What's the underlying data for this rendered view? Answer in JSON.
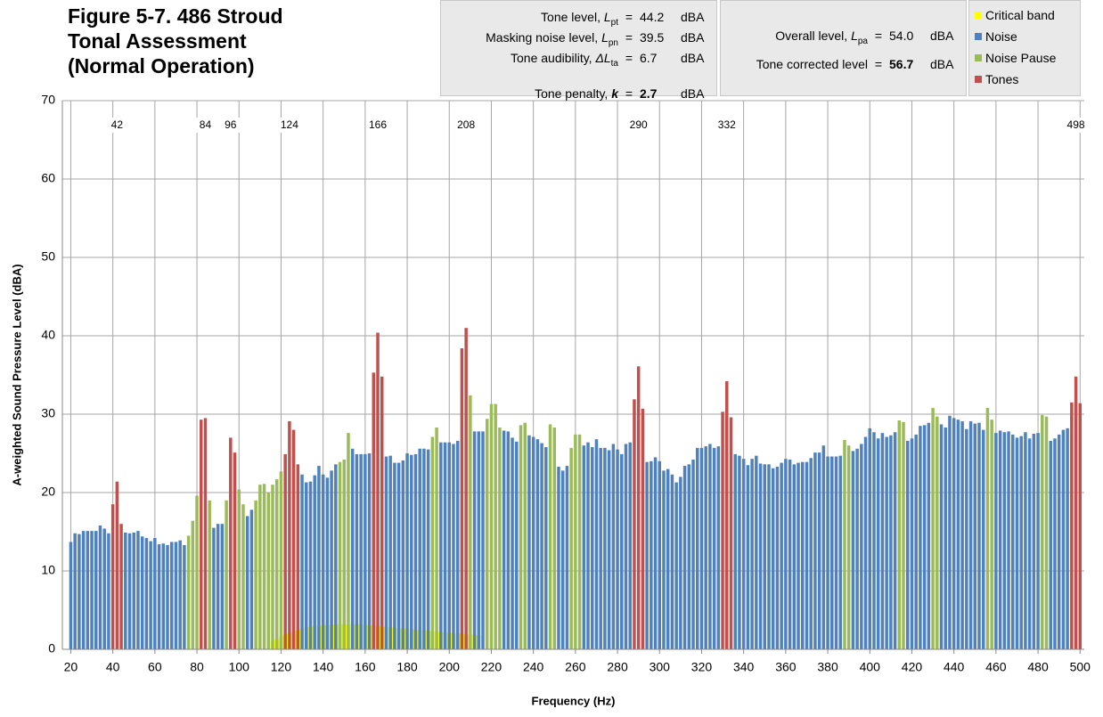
{
  "chart_data": {
    "type": "bar",
    "title": [
      "Figure 5-7.  486 Stroud",
      "Tonal Assessment",
      "(Normal Operation)"
    ],
    "x_label": "Frequency (Hz)",
    "y_label": "A-weighted Sound Pressure Level (dBA)",
    "xlim": [
      16,
      502
    ],
    "xticks": [
      20,
      40,
      60,
      80,
      100,
      120,
      140,
      160,
      180,
      200,
      220,
      240,
      260,
      280,
      300,
      320,
      340,
      360,
      380,
      400,
      420,
      440,
      460,
      480,
      500
    ],
    "ylim": [
      0,
      70
    ],
    "yticks": [
      0,
      10,
      20,
      30,
      40,
      50,
      60,
      70
    ],
    "grid": true,
    "tone_labels": [
      42,
      84,
      96,
      124,
      166,
      208,
      290,
      332,
      498
    ],
    "series": [
      {
        "name": "Critical band",
        "color": "#ffff00",
        "x": [
          116,
          118,
          120,
          122,
          124,
          126,
          128,
          130,
          132,
          134,
          136,
          138,
          140,
          142,
          144,
          146,
          148,
          150,
          152,
          154,
          156,
          158,
          160,
          162,
          164,
          166,
          168,
          170,
          172,
          174,
          176,
          178,
          180,
          182,
          184,
          186,
          188,
          190,
          192,
          194,
          196,
          198,
          200,
          202,
          204,
          206,
          208,
          210,
          212,
          214
        ],
        "values": [
          1.0,
          1.3,
          1.6,
          1.9,
          2.1,
          2.3,
          2.5,
          2.6,
          2.8,
          2.9,
          3.0,
          3.0,
          3.1,
          3.1,
          3.1,
          3.2,
          3.2,
          3.2,
          3.2,
          3.2,
          3.2,
          3.2,
          3.1,
          3.1,
          3.0,
          3.0,
          2.9,
          2.9,
          2.8,
          2.8,
          2.7,
          2.7,
          2.6,
          2.6,
          2.5,
          2.5,
          2.4,
          2.4,
          2.3,
          2.3,
          2.2,
          2.2,
          2.1,
          2.1,
          2.0,
          2.0,
          1.9,
          1.9,
          1.8,
          1.8
        ]
      },
      {
        "name": "Noise",
        "color": "#4f81bd",
        "x": [
          20,
          22,
          24,
          26,
          28,
          30,
          32,
          34,
          36,
          38,
          46,
          48,
          50,
          52,
          54,
          56,
          58,
          60,
          62,
          64,
          66,
          68,
          70,
          72,
          74,
          88,
          90,
          92,
          104,
          106,
          130,
          132,
          134,
          136,
          138,
          140,
          142,
          144,
          146,
          154,
          156,
          158,
          160,
          162,
          170,
          172,
          174,
          176,
          178,
          180,
          182,
          184,
          186,
          188,
          190,
          196,
          198,
          200,
          202,
          204,
          212,
          214,
          216,
          226,
          228,
          230,
          232,
          238,
          240,
          242,
          244,
          246,
          252,
          254,
          256,
          264,
          266,
          268,
          270,
          272,
          274,
          276,
          278,
          280,
          282,
          284,
          286,
          294,
          296,
          298,
          300,
          302,
          304,
          306,
          308,
          310,
          312,
          314,
          316,
          318,
          320,
          322,
          324,
          326,
          328,
          336,
          338,
          340,
          342,
          344,
          346,
          348,
          350,
          352,
          354,
          356,
          358,
          360,
          362,
          364,
          366,
          368,
          370,
          372,
          374,
          376,
          378,
          380,
          382,
          384,
          386,
          392,
          394,
          396,
          398,
          400,
          402,
          404,
          406,
          408,
          410,
          412,
          418,
          420,
          422,
          424,
          426,
          428,
          434,
          436,
          438,
          440,
          442,
          444,
          446,
          448,
          450,
          452,
          454,
          460,
          462,
          464,
          466,
          468,
          470,
          472,
          474,
          476,
          478,
          480,
          486,
          488,
          490,
          492,
          494
        ],
        "values": [
          13.7,
          14.8,
          14.7,
          15.1,
          15.1,
          15.1,
          15.1,
          15.8,
          15.4,
          14.8,
          14.9,
          14.8,
          14.9,
          15.1,
          14.4,
          14.2,
          13.8,
          14.2,
          13.4,
          13.5,
          13.3,
          13.7,
          13.7,
          13.9,
          13.3,
          15.5,
          16.0,
          16.0,
          17.0,
          17.8,
          22.3,
          21.3,
          21.4,
          22.2,
          23.4,
          22.3,
          21.9,
          22.8,
          23.6,
          25.6,
          24.9,
          24.9,
          24.9,
          25.0,
          24.6,
          24.7,
          23.8,
          23.8,
          24.1,
          25.0,
          24.8,
          24.9,
          25.6,
          25.6,
          25.5,
          26.4,
          26.4,
          26.4,
          26.2,
          26.6,
          27.8,
          27.8,
          27.8,
          27.9,
          27.8,
          27.0,
          26.5,
          27.3,
          27.1,
          26.8,
          26.3,
          25.8,
          23.3,
          22.8,
          23.4,
          26.0,
          26.4,
          25.8,
          26.8,
          25.7,
          25.7,
          25.4,
          26.2,
          25.5,
          24.9,
          26.2,
          26.4,
          23.9,
          24.0,
          24.5,
          24.0,
          22.8,
          23.0,
          22.3,
          21.3,
          22.0,
          23.4,
          23.6,
          24.2,
          25.7,
          25.7,
          25.9,
          26.2,
          25.7,
          25.9,
          24.9,
          24.7,
          24.3,
          23.5,
          24.3,
          24.7,
          23.7,
          23.6,
          23.6,
          23.1,
          23.3,
          23.8,
          24.3,
          24.2,
          23.6,
          23.8,
          23.9,
          23.9,
          24.4,
          25.1,
          25.1,
          26.0,
          24.6,
          24.6,
          24.6,
          24.7,
          25.3,
          25.6,
          26.2,
          27.1,
          28.2,
          27.7,
          26.9,
          27.6,
          27.1,
          27.3,
          27.7,
          26.6,
          26.9,
          27.4,
          28.5,
          28.6,
          28.9,
          28.7,
          28.3,
          29.8,
          29.5,
          29.3,
          29.1,
          28.1,
          29.1,
          28.8,
          28.9,
          28.0,
          27.6,
          27.9,
          27.7,
          27.8,
          27.4,
          27.0,
          27.2,
          27.7,
          26.9,
          27.5,
          27.6,
          26.6,
          26.9,
          27.4,
          28.0,
          28.2
        ]
      },
      {
        "name": "Noise Pause",
        "color": "#9bbb59",
        "x": [
          76,
          78,
          80,
          86,
          94,
          100,
          102,
          108,
          110,
          112,
          114,
          116,
          118,
          120,
          148,
          150,
          152,
          192,
          194,
          210,
          218,
          220,
          222,
          224,
          234,
          236,
          248,
          250,
          258,
          260,
          262,
          388,
          390,
          414,
          416,
          430,
          432,
          456,
          458,
          482,
          484
        ],
        "values": [
          14.5,
          16.4,
          19.6,
          19.0,
          19.0,
          20.4,
          18.5,
          19.0,
          21.0,
          21.1,
          20.0,
          21.0,
          21.7,
          22.7,
          23.9,
          24.2,
          27.6,
          27.1,
          28.3,
          32.4,
          29.4,
          31.3,
          31.3,
          28.3,
          28.6,
          28.9,
          28.7,
          28.3,
          25.7,
          27.4,
          27.4,
          26.7,
          26.0,
          29.2,
          29.0,
          30.8,
          29.7,
          30.8,
          29.3,
          29.9,
          29.7
        ]
      },
      {
        "name": "Tones",
        "color": "#c0504d",
        "x": [
          40,
          42,
          44,
          82,
          84,
          96,
          98,
          122,
          124,
          126,
          128,
          164,
          166,
          168,
          206,
          208,
          288,
          290,
          292,
          330,
          332,
          334,
          496,
          498,
          500
        ],
        "values": [
          18.5,
          21.4,
          16.0,
          29.3,
          29.5,
          27.0,
          25.1,
          24.9,
          29.1,
          28.0,
          23.6,
          35.3,
          40.4,
          34.8,
          38.4,
          41.0,
          31.9,
          36.1,
          30.7,
          30.3,
          34.2,
          29.6,
          31.5,
          34.8,
          31.4
        ]
      }
    ]
  },
  "info_boxes": [
    {
      "rows": [
        {
          "label": "Tone level,",
          "symbol": "L",
          "sub": "pt",
          "eq": "=",
          "value": "44.2",
          "unit": "dBA"
        },
        {
          "label": "Masking noise level,",
          "symbol": "L",
          "sub": "pn",
          "eq": "=",
          "value": "39.5",
          "unit": "dBA"
        },
        {
          "label": "Tone audibility,",
          "symbol": "ΔL",
          "sub": "ta",
          "eq": "=",
          "value": "6.7",
          "unit": "dBA"
        },
        {
          "label": "Tone penalty,",
          "symbol": "k",
          "eq": "=",
          "value": "2.7",
          "unit": "dBA",
          "bold": true
        }
      ]
    },
    {
      "rows": [
        {
          "label": "Overall level,",
          "symbol": "L",
          "sub": "pa",
          "eq": "=",
          "value": "54.0",
          "unit": "dBA"
        },
        {
          "label": "Tone corrected level",
          "eq": "=",
          "value": "56.7",
          "unit": "dBA",
          "bold": true
        }
      ]
    }
  ]
}
